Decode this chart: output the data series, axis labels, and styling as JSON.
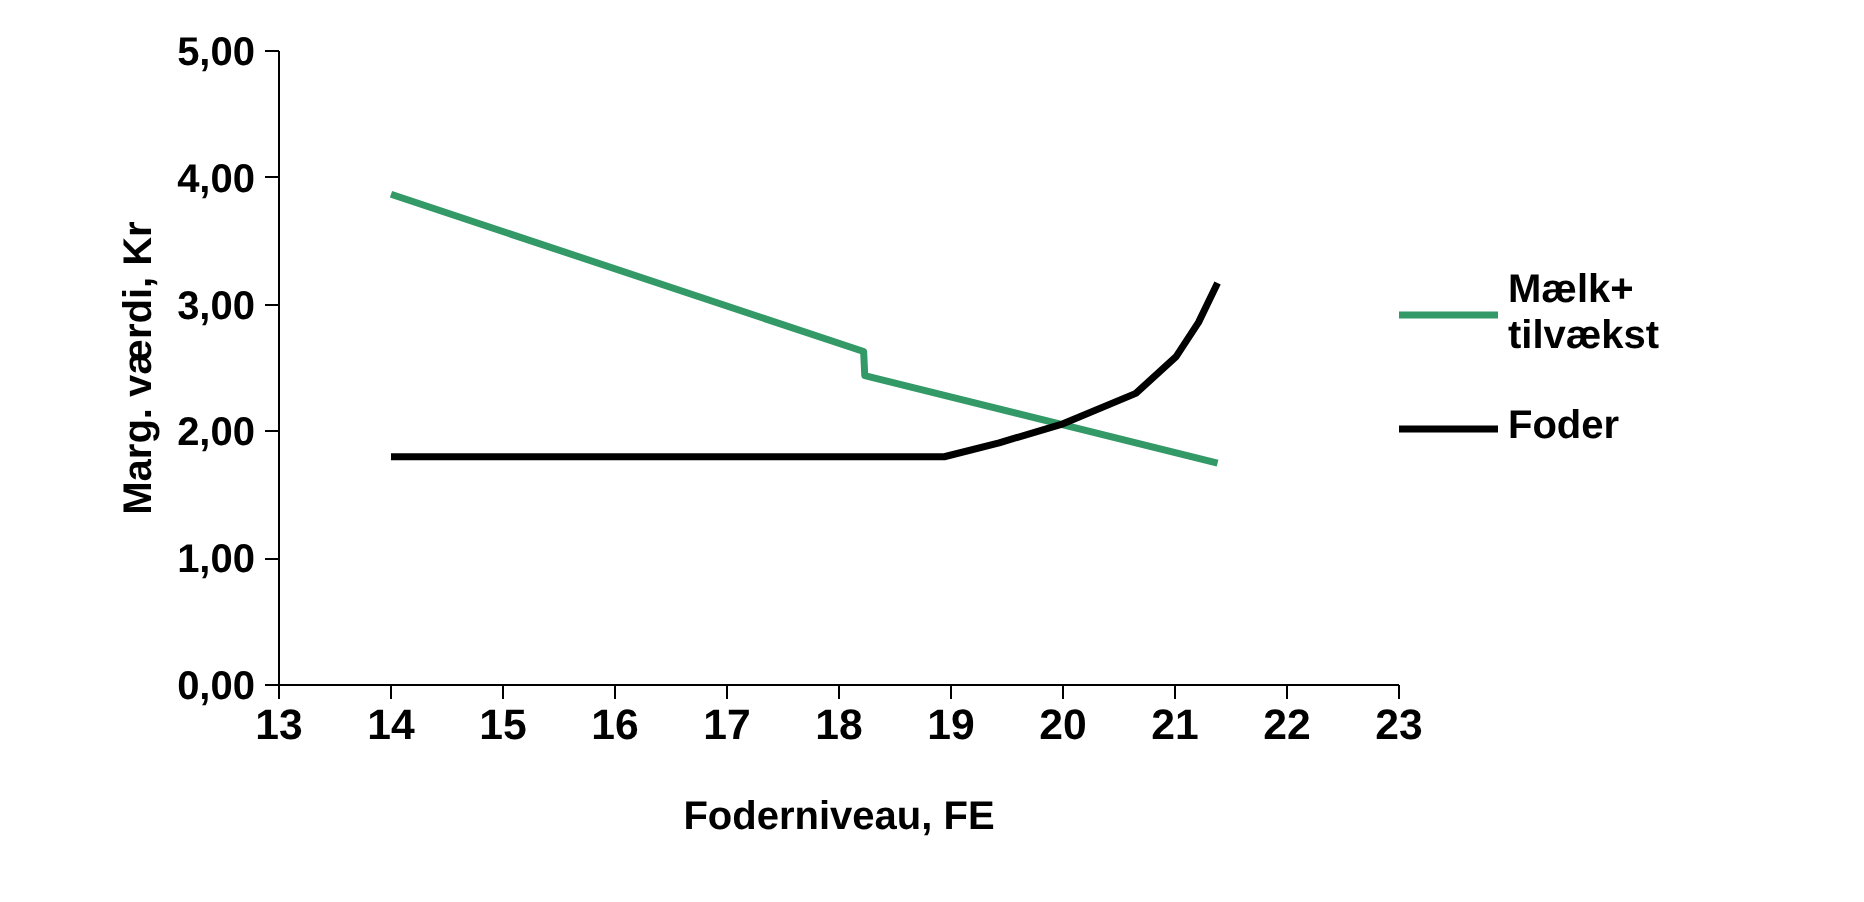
{
  "chart_data": {
    "type": "line",
    "xlabel": "Foderniveau, FE",
    "ylabel": "Marg. værdi, Kr",
    "xlim": [
      13,
      23
    ],
    "xticks": [
      13,
      14,
      15,
      16,
      17,
      18,
      19,
      20,
      21,
      22,
      23
    ],
    "ylim": [
      0,
      5
    ],
    "yticks": [
      {
        "value": 0,
        "label": "0,00"
      },
      {
        "value": 1,
        "label": "1,00"
      },
      {
        "value": 2,
        "label": "2,00"
      },
      {
        "value": 3,
        "label": "3,00"
      },
      {
        "value": 4,
        "label": "4,00"
      },
      {
        "value": 5,
        "label": "5,00"
      }
    ],
    "grid": false,
    "legend": "right",
    "marker": "none",
    "line_style": "solid",
    "series": [
      {
        "name": "Mælk+ tilvækst",
        "color": "#339966",
        "x": [
          14,
          18.22,
          18.23,
          21.38
        ],
        "values": [
          3.87,
          2.63,
          2.44,
          1.75
        ]
      },
      {
        "name": "Foder",
        "color": "#000000",
        "x": [
          14,
          18.94,
          19.43,
          20.0,
          20.65,
          21.01,
          21.21,
          21.38
        ],
        "values": [
          1.8,
          1.8,
          1.91,
          2.06,
          2.3,
          2.59,
          2.86,
          3.17
        ]
      }
    ]
  }
}
